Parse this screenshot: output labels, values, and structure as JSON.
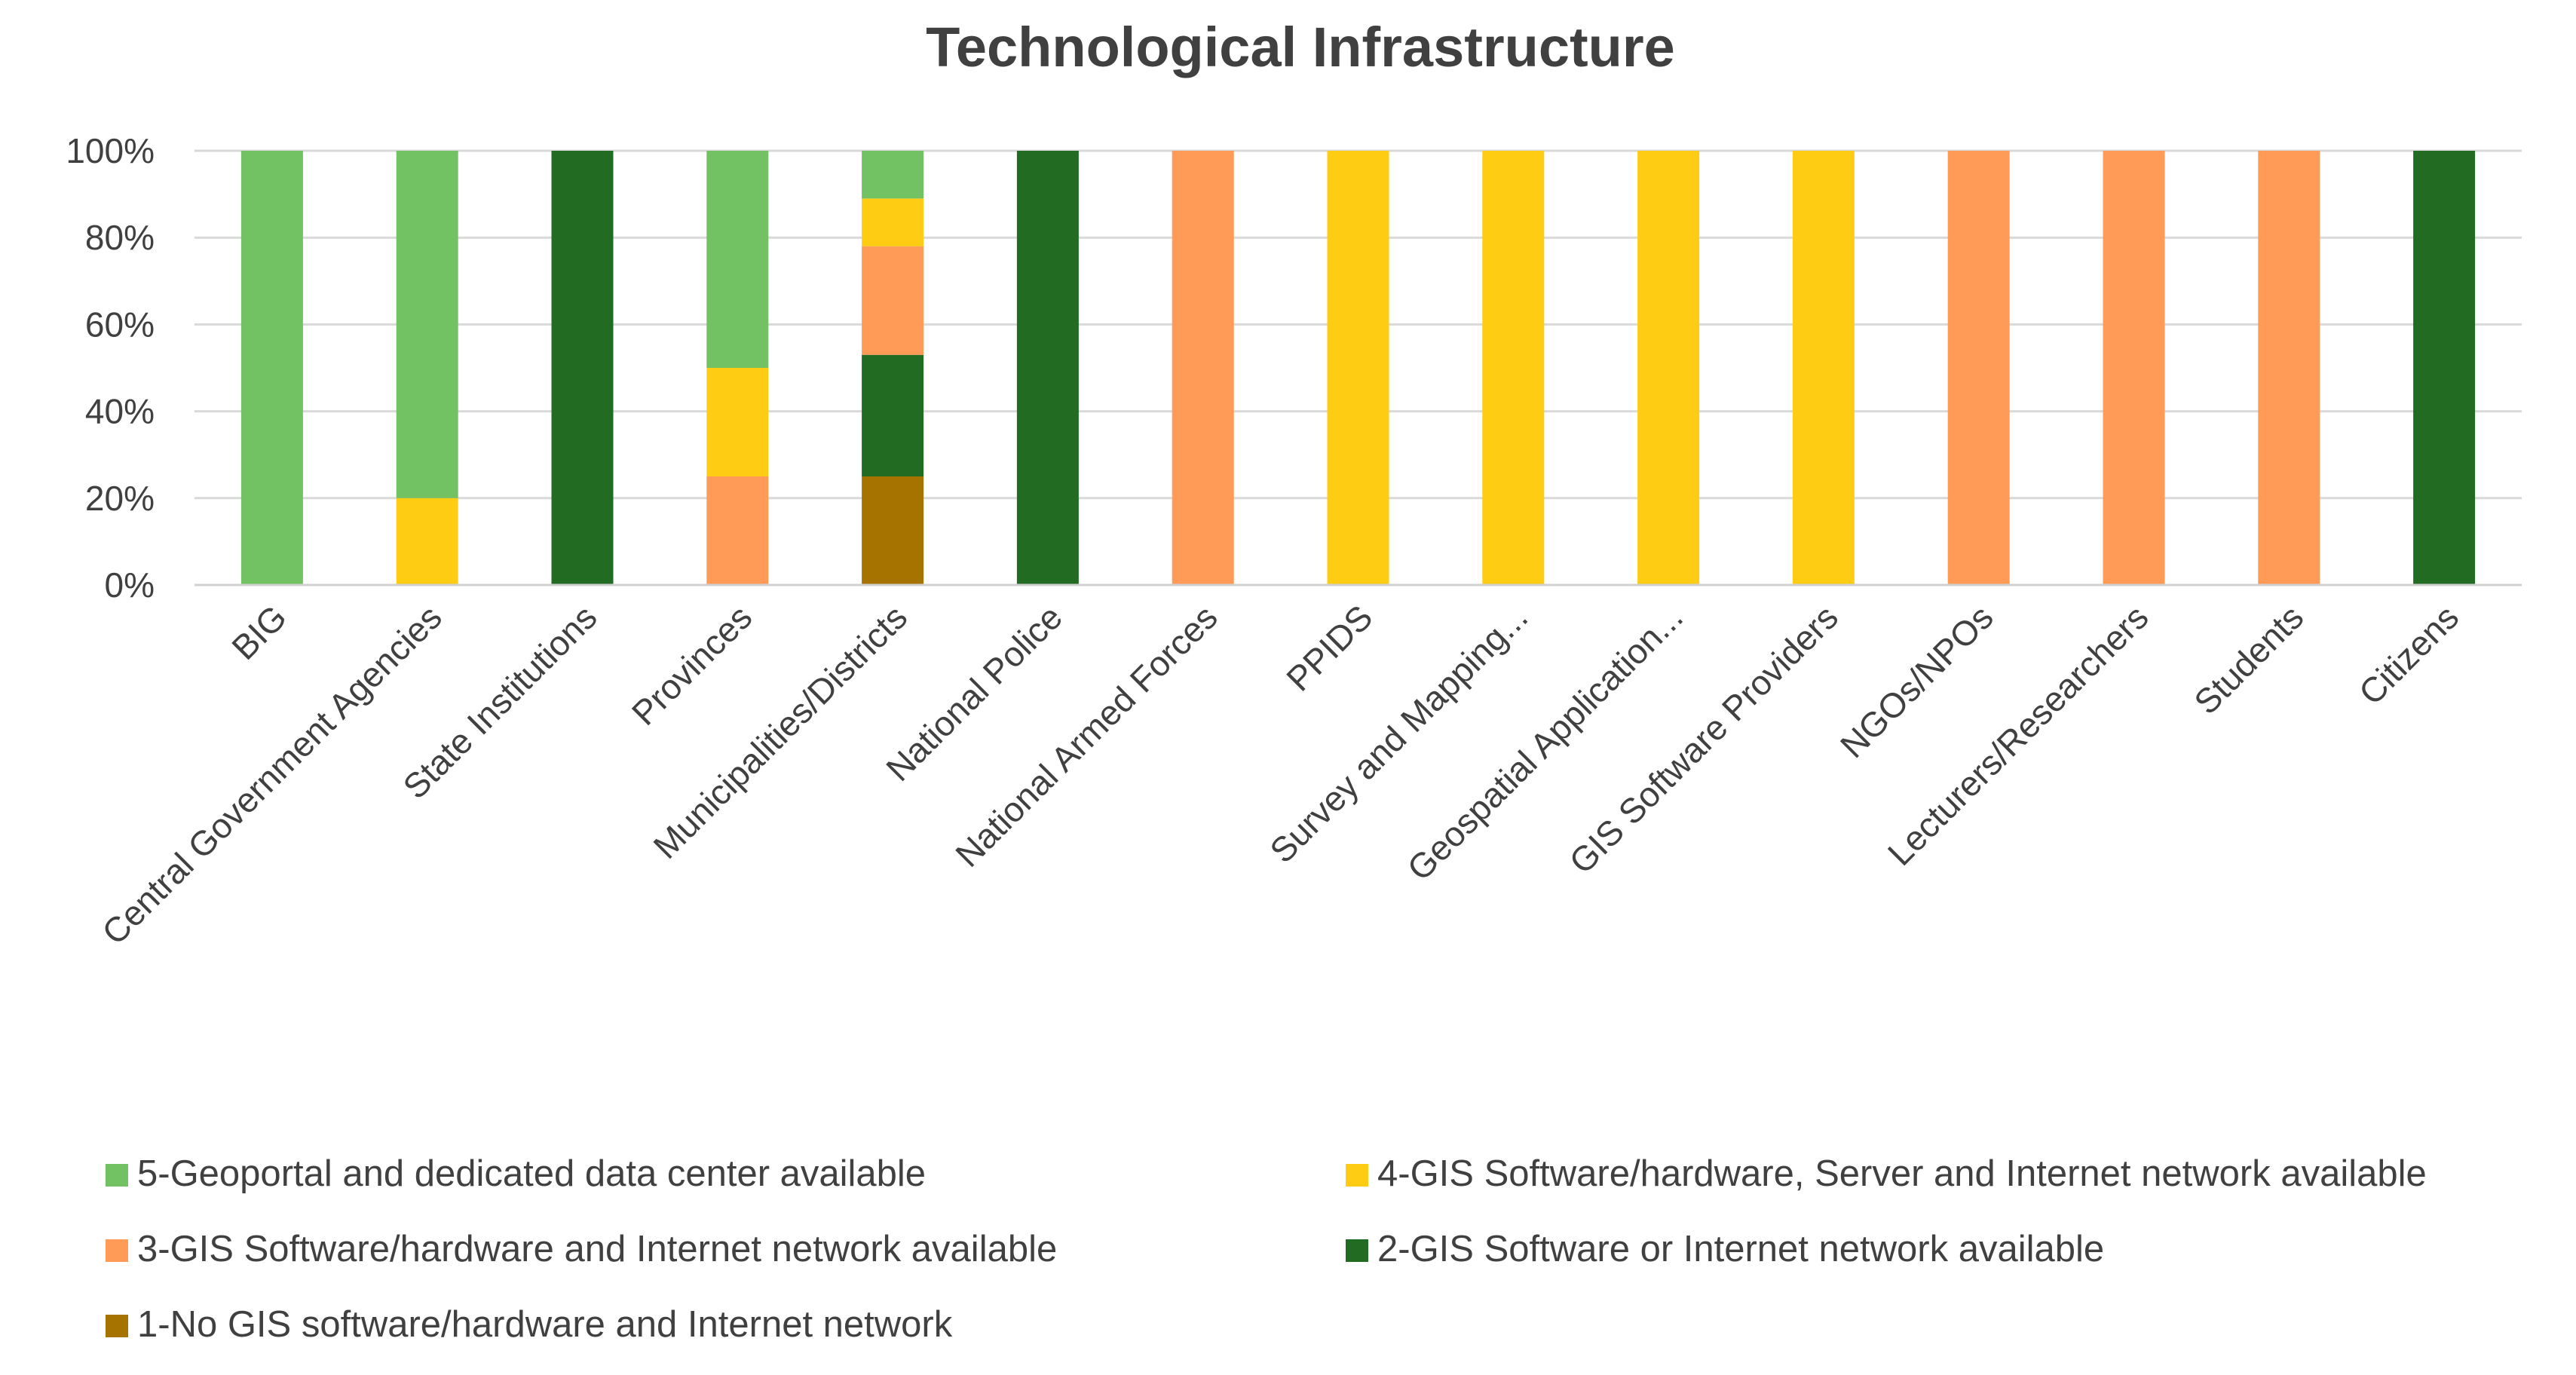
{
  "chart_data": {
    "type": "bar",
    "stacked": true,
    "title": "Technological Infrastructure",
    "xlabel": "",
    "ylabel": "",
    "ylim": [
      0,
      100
    ],
    "y_ticks": [
      "0%",
      "20%",
      "40%",
      "60%",
      "80%",
      "100%"
    ],
    "grid": true,
    "legend_position": "bottom",
    "categories": [
      "BIG",
      "Central Government Agencies",
      "State Institutions",
      "Provinces",
      "Municipalities/Districts",
      "National Police",
      "National Armed Forces",
      "PPIDS",
      "Survey and Mapping...",
      "Geospatial Application...",
      "GIS Software Providers",
      "NGOs/NPOs",
      "Lecturers/Researchers",
      "Students",
      "Citizens"
    ],
    "series": [
      {
        "name": "1-No GIS software/hardware and Internet network",
        "color": "#A67300",
        "values": [
          0,
          0,
          0,
          0,
          25,
          0,
          0,
          0,
          0,
          0,
          0,
          0,
          0,
          0,
          0
        ]
      },
      {
        "name": "2-GIS Software or Internet network available",
        "color": "#226B22",
        "values": [
          0,
          0,
          100,
          0,
          28,
          100,
          0,
          0,
          0,
          0,
          0,
          0,
          0,
          0,
          100
        ]
      },
      {
        "name": "3-GIS Software/hardware and Internet network available",
        "color": "#FF9A57",
        "values": [
          0,
          0,
          0,
          25,
          25,
          0,
          100,
          0,
          0,
          0,
          0,
          100,
          100,
          100,
          0
        ]
      },
      {
        "name": "4-GIS Software/hardware, Server and Internet network available",
        "color": "#FFCC14",
        "values": [
          0,
          20,
          0,
          25,
          11,
          0,
          0,
          100,
          100,
          100,
          100,
          0,
          0,
          0,
          0
        ]
      },
      {
        "name": "5-Geoportal and dedicated data center available",
        "color": "#72C162",
        "values": [
          100,
          80,
          0,
          50,
          11,
          0,
          0,
          0,
          0,
          0,
          0,
          0,
          0,
          0,
          0
        ]
      }
    ],
    "legend_order": [
      4,
      3,
      2,
      1,
      0
    ]
  }
}
